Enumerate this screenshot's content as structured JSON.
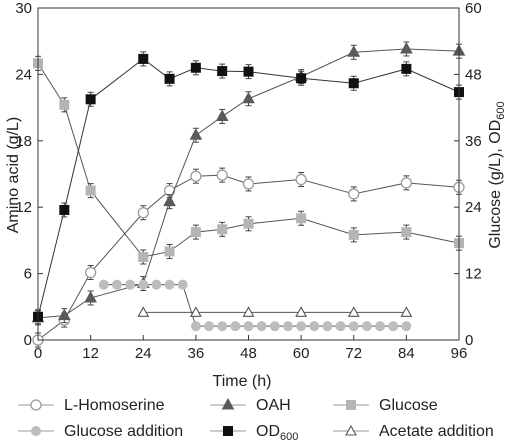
{
  "chart_data": {
    "type": "line",
    "xlabel": "Time (h)",
    "ylabel_left": "Amino acid (g/L)",
    "ylabel_right": "Glucose (g/L), OD",
    "ylabel_right_sub": "600",
    "xlim": [
      0,
      96
    ],
    "ylim_left": [
      0,
      30
    ],
    "ylim_right": [
      0,
      60
    ],
    "x_ticks": [
      "0",
      "12",
      "24",
      "36",
      "48",
      "60",
      "72",
      "84",
      "96"
    ],
    "y_left_ticks": [
      "0",
      "6",
      "12",
      "18",
      "24",
      "30"
    ],
    "y_right_ticks": [
      "0",
      "12",
      "24",
      "36",
      "48",
      "60"
    ],
    "grid": false,
    "legend_placement": "bottom",
    "series": [
      {
        "name": "L-Homoserine",
        "axis": "left",
        "marker": "circle-open",
        "color": "#9a9a9a",
        "line": "#555555",
        "x": [
          0,
          6,
          12,
          24,
          30,
          36,
          42,
          48,
          60,
          72,
          84,
          96
        ],
        "y": [
          0,
          1.8,
          6.1,
          11.5,
          13.5,
          14.8,
          14.9,
          14.1,
          14.5,
          13.2,
          14.2,
          13.8
        ]
      },
      {
        "name": "OAH",
        "axis": "left",
        "marker": "triangle-filled",
        "color": "#5a5a5a",
        "line": "#555555",
        "x": [
          0,
          6,
          12,
          24,
          30,
          36,
          42,
          48,
          60,
          72,
          84,
          96
        ],
        "y": [
          2.0,
          2.2,
          3.8,
          5.1,
          12.5,
          18.5,
          20.2,
          21.8,
          23.8,
          26.0,
          26.3,
          26.1
        ]
      },
      {
        "name": "Glucose",
        "axis": "right",
        "marker": "square-filled",
        "color": "#b4b4b4",
        "line": "#555555",
        "x": [
          0,
          6,
          12,
          24,
          30,
          36,
          42,
          48,
          60,
          72,
          84,
          96
        ],
        "y": [
          50.0,
          42.5,
          27.0,
          15.0,
          16.0,
          19.5,
          20.0,
          21.0,
          22.0,
          19.0,
          19.5,
          17.5
        ]
      },
      {
        "name": "Glucose addition",
        "axis": "right",
        "marker": "circle-filled",
        "color": "#bdbdbd",
        "line": "#555555",
        "x": [
          15,
          18,
          21,
          24,
          27,
          30,
          33,
          36,
          39,
          42,
          45,
          48,
          51,
          54,
          57,
          60,
          63,
          66,
          69,
          72,
          75,
          78,
          81,
          84
        ],
        "y": [
          10,
          10,
          10,
          10,
          10,
          10,
          10,
          2.5,
          2.5,
          2.5,
          2.5,
          2.5,
          2.5,
          2.5,
          2.5,
          2.5,
          2.5,
          2.5,
          2.5,
          2.5,
          2.5,
          2.5,
          2.5,
          2.5
        ]
      },
      {
        "name": "OD",
        "name_sub": "600",
        "axis": "right",
        "marker": "square-filled",
        "color": "#111111",
        "line": "#333333",
        "x": [
          0,
          6,
          12,
          24,
          30,
          36,
          42,
          48,
          60,
          72,
          84,
          96
        ],
        "y": [
          4.2,
          23.5,
          43.5,
          50.8,
          47.2,
          49.2,
          48.6,
          48.5,
          47.3,
          46.4,
          49.0,
          44.8
        ]
      },
      {
        "name": "Acetate addition",
        "axis": "right",
        "marker": "triangle-open",
        "color": "#555555",
        "line": "#555555",
        "x": [
          24,
          36,
          48,
          60,
          72,
          84
        ],
        "y": [
          5,
          5,
          5,
          5,
          5,
          5
        ]
      }
    ]
  }
}
